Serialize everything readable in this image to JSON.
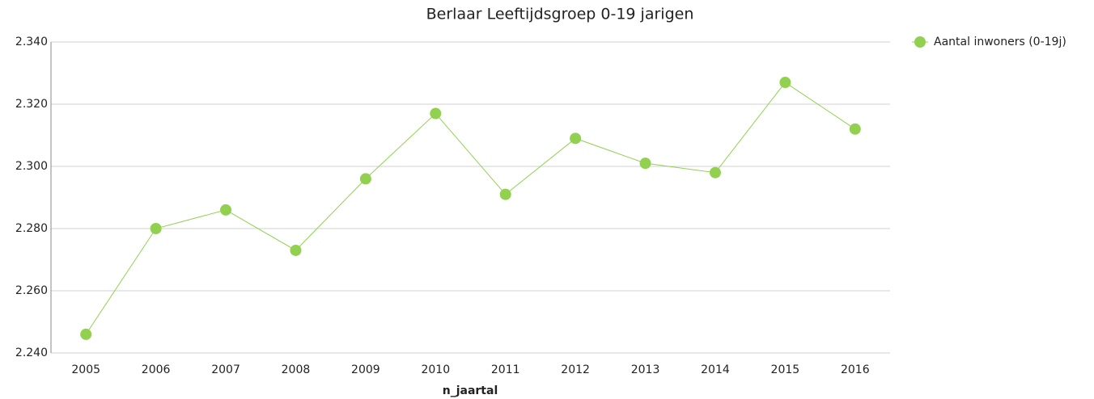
{
  "chart_data": {
    "type": "line",
    "title": "Berlaar  Leeftijdsgroep 0-19 jarigen",
    "x_label": "n_jaartal",
    "categories": [
      "2005",
      "2006",
      "2007",
      "2008",
      "2009",
      "2010",
      "2011",
      "2012",
      "2013",
      "2014",
      "2015",
      "2016"
    ],
    "series": [
      {
        "name": "Aantal inwoners (0-19j)",
        "color": "#92d050",
        "values": [
          2246,
          2280,
          2286,
          2273,
          2296,
          2317,
          2291,
          2309,
          2301,
          2298,
          2327,
          2312
        ]
      }
    ],
    "ylim": [
      2240,
      2340
    ],
    "yticks": [
      {
        "value": 2240,
        "label": "2.240"
      },
      {
        "value": 2260,
        "label": "2.260"
      },
      {
        "value": 2280,
        "label": "2.280"
      },
      {
        "value": 2300,
        "label": "2.300"
      },
      {
        "value": 2320,
        "label": "2.320"
      },
      {
        "value": 2340,
        "label": "2.340"
      }
    ],
    "grid": true,
    "legend": "right"
  }
}
